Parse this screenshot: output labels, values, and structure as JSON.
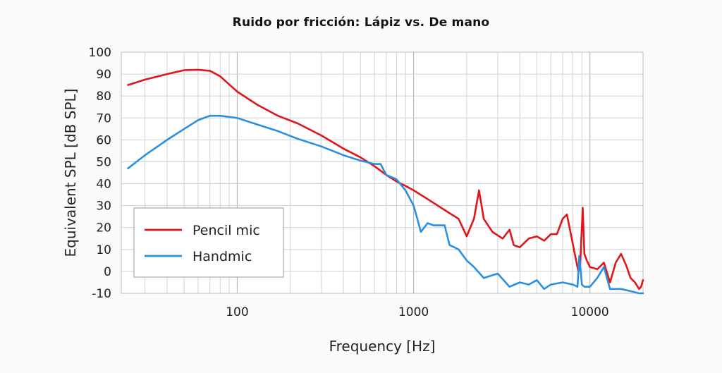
{
  "chart_data": {
    "type": "line",
    "title": "Ruido por fricción: Lápiz vs. De mano",
    "xlabel": "Frequency [Hz]",
    "ylabel": "Equivalent SPL [dB SPL]",
    "x_scale": "log",
    "xlim": [
      22,
      20000
    ],
    "ylim": [
      -10,
      100
    ],
    "x_ticks": [
      100,
      1000,
      10000
    ],
    "x_tick_labels": [
      "100",
      "1000",
      "10000"
    ],
    "y_ticks": [
      -10,
      0,
      10,
      20,
      30,
      40,
      50,
      60,
      70,
      80,
      90,
      100
    ],
    "y_tick_labels": [
      "-10",
      "0",
      "10",
      "20",
      "30",
      "40",
      "50",
      "60",
      "70",
      "80",
      "90",
      "100"
    ],
    "grid": true,
    "legend_position": "bottom-left",
    "series": [
      {
        "name": "Pencil mic",
        "color": "#e0161b",
        "x": [
          24,
          30,
          40,
          50,
          60,
          70,
          80,
          100,
          130,
          170,
          220,
          300,
          400,
          500,
          600,
          700,
          800,
          900,
          1000,
          1200,
          1500,
          1800,
          2000,
          2200,
          2350,
          2500,
          2800,
          3200,
          3500,
          3700,
          4000,
          4500,
          5000,
          5500,
          6000,
          6500,
          7000,
          7400,
          7800,
          8200,
          8600,
          8800,
          9100,
          9300,
          9600,
          10000,
          11000,
          12000,
          13000,
          14000,
          15000,
          16000,
          17000,
          18000,
          19000,
          19500,
          20000
        ],
        "y": [
          85,
          87.5,
          90,
          91.8,
          92,
          91.5,
          89,
          82,
          76,
          71,
          67.5,
          62,
          56,
          52,
          48,
          44,
          41,
          39,
          37,
          33,
          28,
          24,
          16,
          24,
          37,
          24,
          18,
          15,
          19,
          12,
          11,
          15,
          16,
          14,
          17,
          17,
          24,
          26,
          17,
          8,
          0,
          3,
          29,
          8,
          5,
          2,
          1,
          4,
          -5,
          4,
          8,
          3,
          -3,
          -5,
          -8,
          -7,
          -4
        ]
      },
      {
        "name": "Handmic",
        "color": "#2b8fe0",
        "x": [
          24,
          30,
          40,
          50,
          60,
          70,
          80,
          100,
          130,
          170,
          220,
          300,
          400,
          500,
          600,
          650,
          700,
          750,
          800,
          900,
          1000,
          1050,
          1100,
          1200,
          1300,
          1500,
          1600,
          1700,
          1800,
          2000,
          2200,
          2500,
          3000,
          3500,
          4000,
          4500,
          5000,
          5500,
          6000,
          7000,
          8000,
          8500,
          8700,
          9000,
          9300,
          10000,
          11000,
          12000,
          13000,
          15000,
          17000,
          19000,
          20000
        ],
        "y": [
          47,
          53,
          60,
          65,
          69,
          71,
          71,
          70,
          67,
          64,
          60.5,
          57,
          53,
          50.5,
          49,
          49,
          44,
          43,
          42,
          37,
          30,
          24,
          18,
          22,
          21,
          21,
          12,
          11,
          10,
          5,
          2,
          -3,
          -1,
          -7,
          -5,
          -6,
          -4,
          -8,
          -6,
          -5,
          -6,
          -7,
          7,
          -6,
          -7,
          -7,
          -3,
          2,
          -8,
          -8,
          -9,
          -10,
          -10
        ]
      }
    ]
  }
}
